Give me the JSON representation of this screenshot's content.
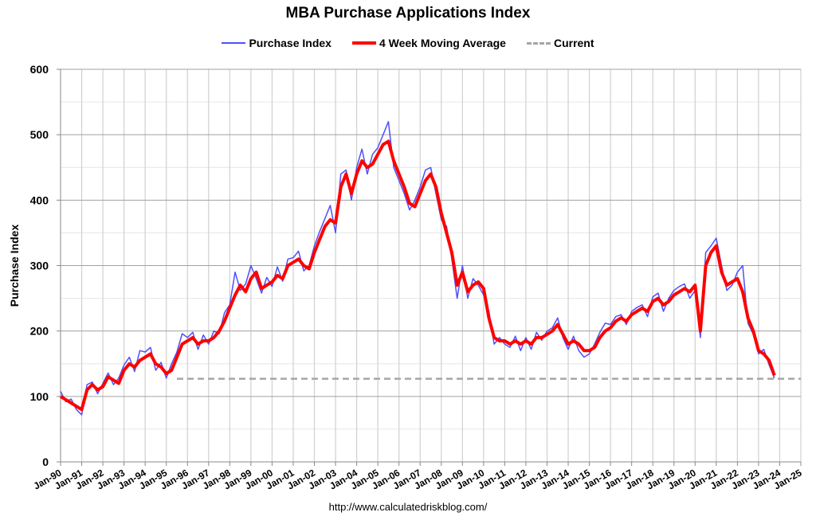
{
  "chart_data": {
    "type": "line",
    "title": "MBA Purchase Applications Index",
    "ylabel": "Purchase Index",
    "xlabel": "",
    "ylim": [
      0,
      600
    ],
    "yticks": [
      0,
      100,
      200,
      300,
      400,
      500,
      600
    ],
    "xlim": [
      "1990-01",
      "2025-01"
    ],
    "xtick_labels": [
      "Jan-90",
      "Jan-91",
      "Jan-92",
      "Jan-93",
      "Jan-94",
      "Jan-95",
      "Jan-96",
      "Jan-97",
      "Jan-98",
      "Jan-99",
      "Jan-00",
      "Jan-01",
      "Jan-02",
      "Jan-03",
      "Jan-04",
      "Jan-05",
      "Jan-06",
      "Jan-07",
      "Jan-08",
      "Jan-09",
      "Jan-10",
      "Jan-11",
      "Jan-12",
      "Jan-13",
      "Jan-14",
      "Jan-15",
      "Jan-16",
      "Jan-17",
      "Jan-18",
      "Jan-19",
      "Jan-20",
      "Jan-21",
      "Jan-22",
      "Jan-23",
      "Jan-24",
      "Jan-25"
    ],
    "grid": true,
    "legend_position": "top",
    "x": [
      "1990-01",
      "1990-04",
      "1990-07",
      "1990-10",
      "1991-01",
      "1991-04",
      "1991-07",
      "1991-10",
      "1992-01",
      "1992-04",
      "1992-07",
      "1992-10",
      "1993-01",
      "1993-04",
      "1993-07",
      "1993-10",
      "1994-01",
      "1994-04",
      "1994-07",
      "1994-10",
      "1995-01",
      "1995-04",
      "1995-07",
      "1995-10",
      "1996-01",
      "1996-04",
      "1996-07",
      "1996-10",
      "1997-01",
      "1997-04",
      "1997-07",
      "1997-10",
      "1998-01",
      "1998-04",
      "1998-07",
      "1998-10",
      "1999-01",
      "1999-04",
      "1999-07",
      "1999-10",
      "2000-01",
      "2000-04",
      "2000-07",
      "2000-10",
      "2001-01",
      "2001-04",
      "2001-07",
      "2001-10",
      "2002-01",
      "2002-04",
      "2002-07",
      "2002-10",
      "2003-01",
      "2003-04",
      "2003-07",
      "2003-10",
      "2004-01",
      "2004-04",
      "2004-07",
      "2004-10",
      "2005-01",
      "2005-04",
      "2005-07",
      "2005-10",
      "2006-01",
      "2006-04",
      "2006-07",
      "2006-10",
      "2007-01",
      "2007-04",
      "2007-07",
      "2007-10",
      "2008-01",
      "2008-04",
      "2008-07",
      "2008-10",
      "2009-01",
      "2009-04",
      "2009-07",
      "2009-10",
      "2010-01",
      "2010-04",
      "2010-07",
      "2010-10",
      "2011-01",
      "2011-04",
      "2011-07",
      "2011-10",
      "2012-01",
      "2012-04",
      "2012-07",
      "2012-10",
      "2013-01",
      "2013-04",
      "2013-07",
      "2013-10",
      "2014-01",
      "2014-04",
      "2014-07",
      "2014-10",
      "2015-01",
      "2015-04",
      "2015-07",
      "2015-10",
      "2016-01",
      "2016-04",
      "2016-07",
      "2016-10",
      "2017-01",
      "2017-04",
      "2017-07",
      "2017-10",
      "2018-01",
      "2018-04",
      "2018-07",
      "2018-10",
      "2019-01",
      "2019-04",
      "2019-07",
      "2019-10",
      "2020-01",
      "2020-04",
      "2020-07",
      "2020-10",
      "2021-01",
      "2021-04",
      "2021-07",
      "2021-10",
      "2022-01",
      "2022-04",
      "2022-07",
      "2022-10",
      "2023-01",
      "2023-04",
      "2023-07",
      "2023-10"
    ],
    "series": [
      {
        "name": "Purchase Index",
        "color": "#4f4fff",
        "values": [
          108,
          92,
          96,
          80,
          72,
          118,
          122,
          104,
          120,
          136,
          118,
          128,
          148,
          160,
          138,
          170,
          168,
          175,
          140,
          152,
          128,
          150,
          168,
          196,
          190,
          198,
          172,
          194,
          180,
          200,
          196,
          228,
          240,
          290,
          262,
          272,
          300,
          280,
          258,
          282,
          268,
          298,
          276,
          310,
          312,
          322,
          292,
          300,
          330,
          352,
          372,
          392,
          350,
          440,
          446,
          400,
          450,
          478,
          440,
          470,
          480,
          500,
          520,
          450,
          430,
          410,
          385,
          400,
          420,
          446,
          450,
          410,
          370,
          360,
          310,
          250,
          300,
          250,
          280,
          270,
          255,
          230,
          180,
          190,
          180,
          175,
          192,
          170,
          190,
          172,
          198,
          186,
          200,
          205,
          220,
          190,
          172,
          192,
          170,
          160,
          165,
          180,
          198,
          212,
          210,
          222,
          225,
          210,
          230,
          236,
          240,
          222,
          252,
          258,
          230,
          250,
          262,
          268,
          272,
          250,
          262,
          190,
          320,
          330,
          342,
          300,
          262,
          270,
          290,
          300,
          212,
          195,
          165,
          172,
          148,
          128
        ]
      },
      {
        "name": "4 Week Moving Average",
        "color": "#ff0000",
        "values": [
          100,
          95,
          90,
          85,
          80,
          110,
          118,
          110,
          115,
          130,
          125,
          120,
          140,
          150,
          145,
          155,
          160,
          165,
          150,
          145,
          135,
          140,
          160,
          180,
          185,
          190,
          180,
          185,
          185,
          190,
          200,
          215,
          235,
          255,
          270,
          260,
          280,
          290,
          265,
          270,
          275,
          285,
          280,
          300,
          305,
          310,
          300,
          295,
          320,
          340,
          360,
          370,
          365,
          420,
          440,
          410,
          440,
          460,
          450,
          455,
          470,
          485,
          490,
          460,
          440,
          420,
          395,
          390,
          410,
          430,
          440,
          420,
          380,
          350,
          320,
          270,
          290,
          260,
          270,
          275,
          265,
          220,
          190,
          185,
          185,
          180,
          185,
          180,
          185,
          180,
          190,
          190,
          195,
          200,
          210,
          195,
          180,
          185,
          180,
          170,
          170,
          175,
          190,
          200,
          205,
          215,
          220,
          215,
          225,
          230,
          235,
          230,
          245,
          250,
          240,
          245,
          255,
          260,
          265,
          260,
          270,
          200,
          300,
          320,
          330,
          290,
          270,
          275,
          280,
          260,
          220,
          200,
          170,
          165,
          155,
          132
        ]
      },
      {
        "name": "Current",
        "color": "#a6a6a6",
        "style": "dashed",
        "value": 127,
        "from": "1995-07"
      }
    ]
  },
  "footer": "http://www.calculatedriskblog.com/"
}
